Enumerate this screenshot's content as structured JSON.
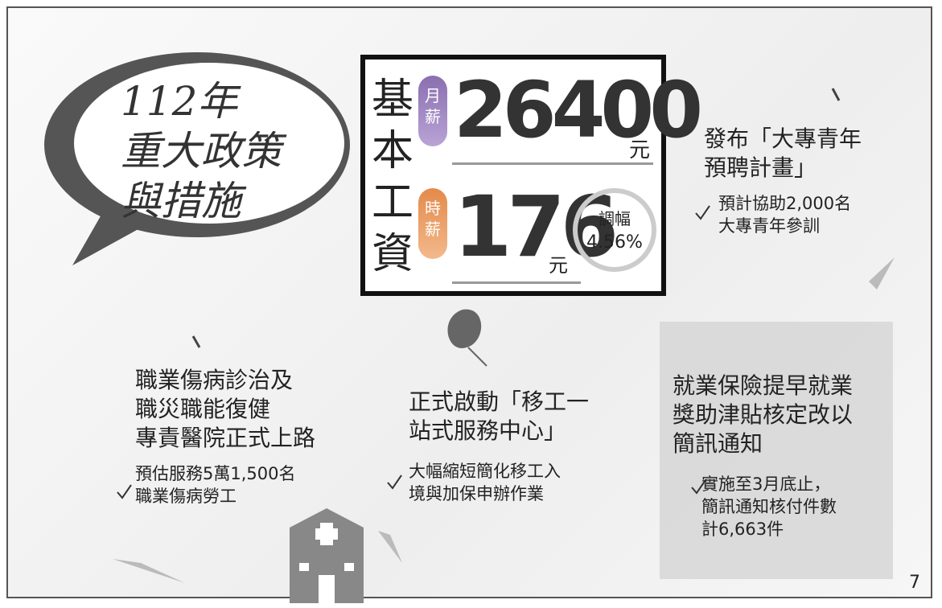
{
  "title": {
    "lines": [
      "112年",
      "重大政策",
      "與措施"
    ]
  },
  "wage": {
    "label": "基本工資",
    "monthly_tag": "月薪",
    "monthly": "26400",
    "monthly_unit": "元",
    "hourly_tag": "時薪",
    "hourly": "176",
    "hourly_unit": "元",
    "raise_label": "調幅",
    "raise": "4.56%"
  },
  "sections": [
    {
      "heading": [
        "發布「大專青年",
        "預聘計畫」"
      ],
      "points": [
        "預計協助2,000名",
        "大專青年參訓"
      ]
    },
    {
      "heading": [
        "職業傷病診治及",
        "職災職能復健",
        "專責醫院正式上路"
      ],
      "points": [
        "預估服務5萬1,500名",
        "職業傷病勞工"
      ]
    },
    {
      "heading": [
        "正式啟動「移工一",
        "站式服務中心」"
      ],
      "points": [
        "大幅縮短簡化移工入",
        "境與加保申辦作業"
      ]
    },
    {
      "heading": [
        "就業保險提早就業",
        "獎助津貼核定改以",
        "簡訊通知"
      ],
      "points": [
        "實施至3月底止，",
        "簡訊通知核付件數",
        "計6,663件"
      ]
    }
  ],
  "page_number": "7"
}
